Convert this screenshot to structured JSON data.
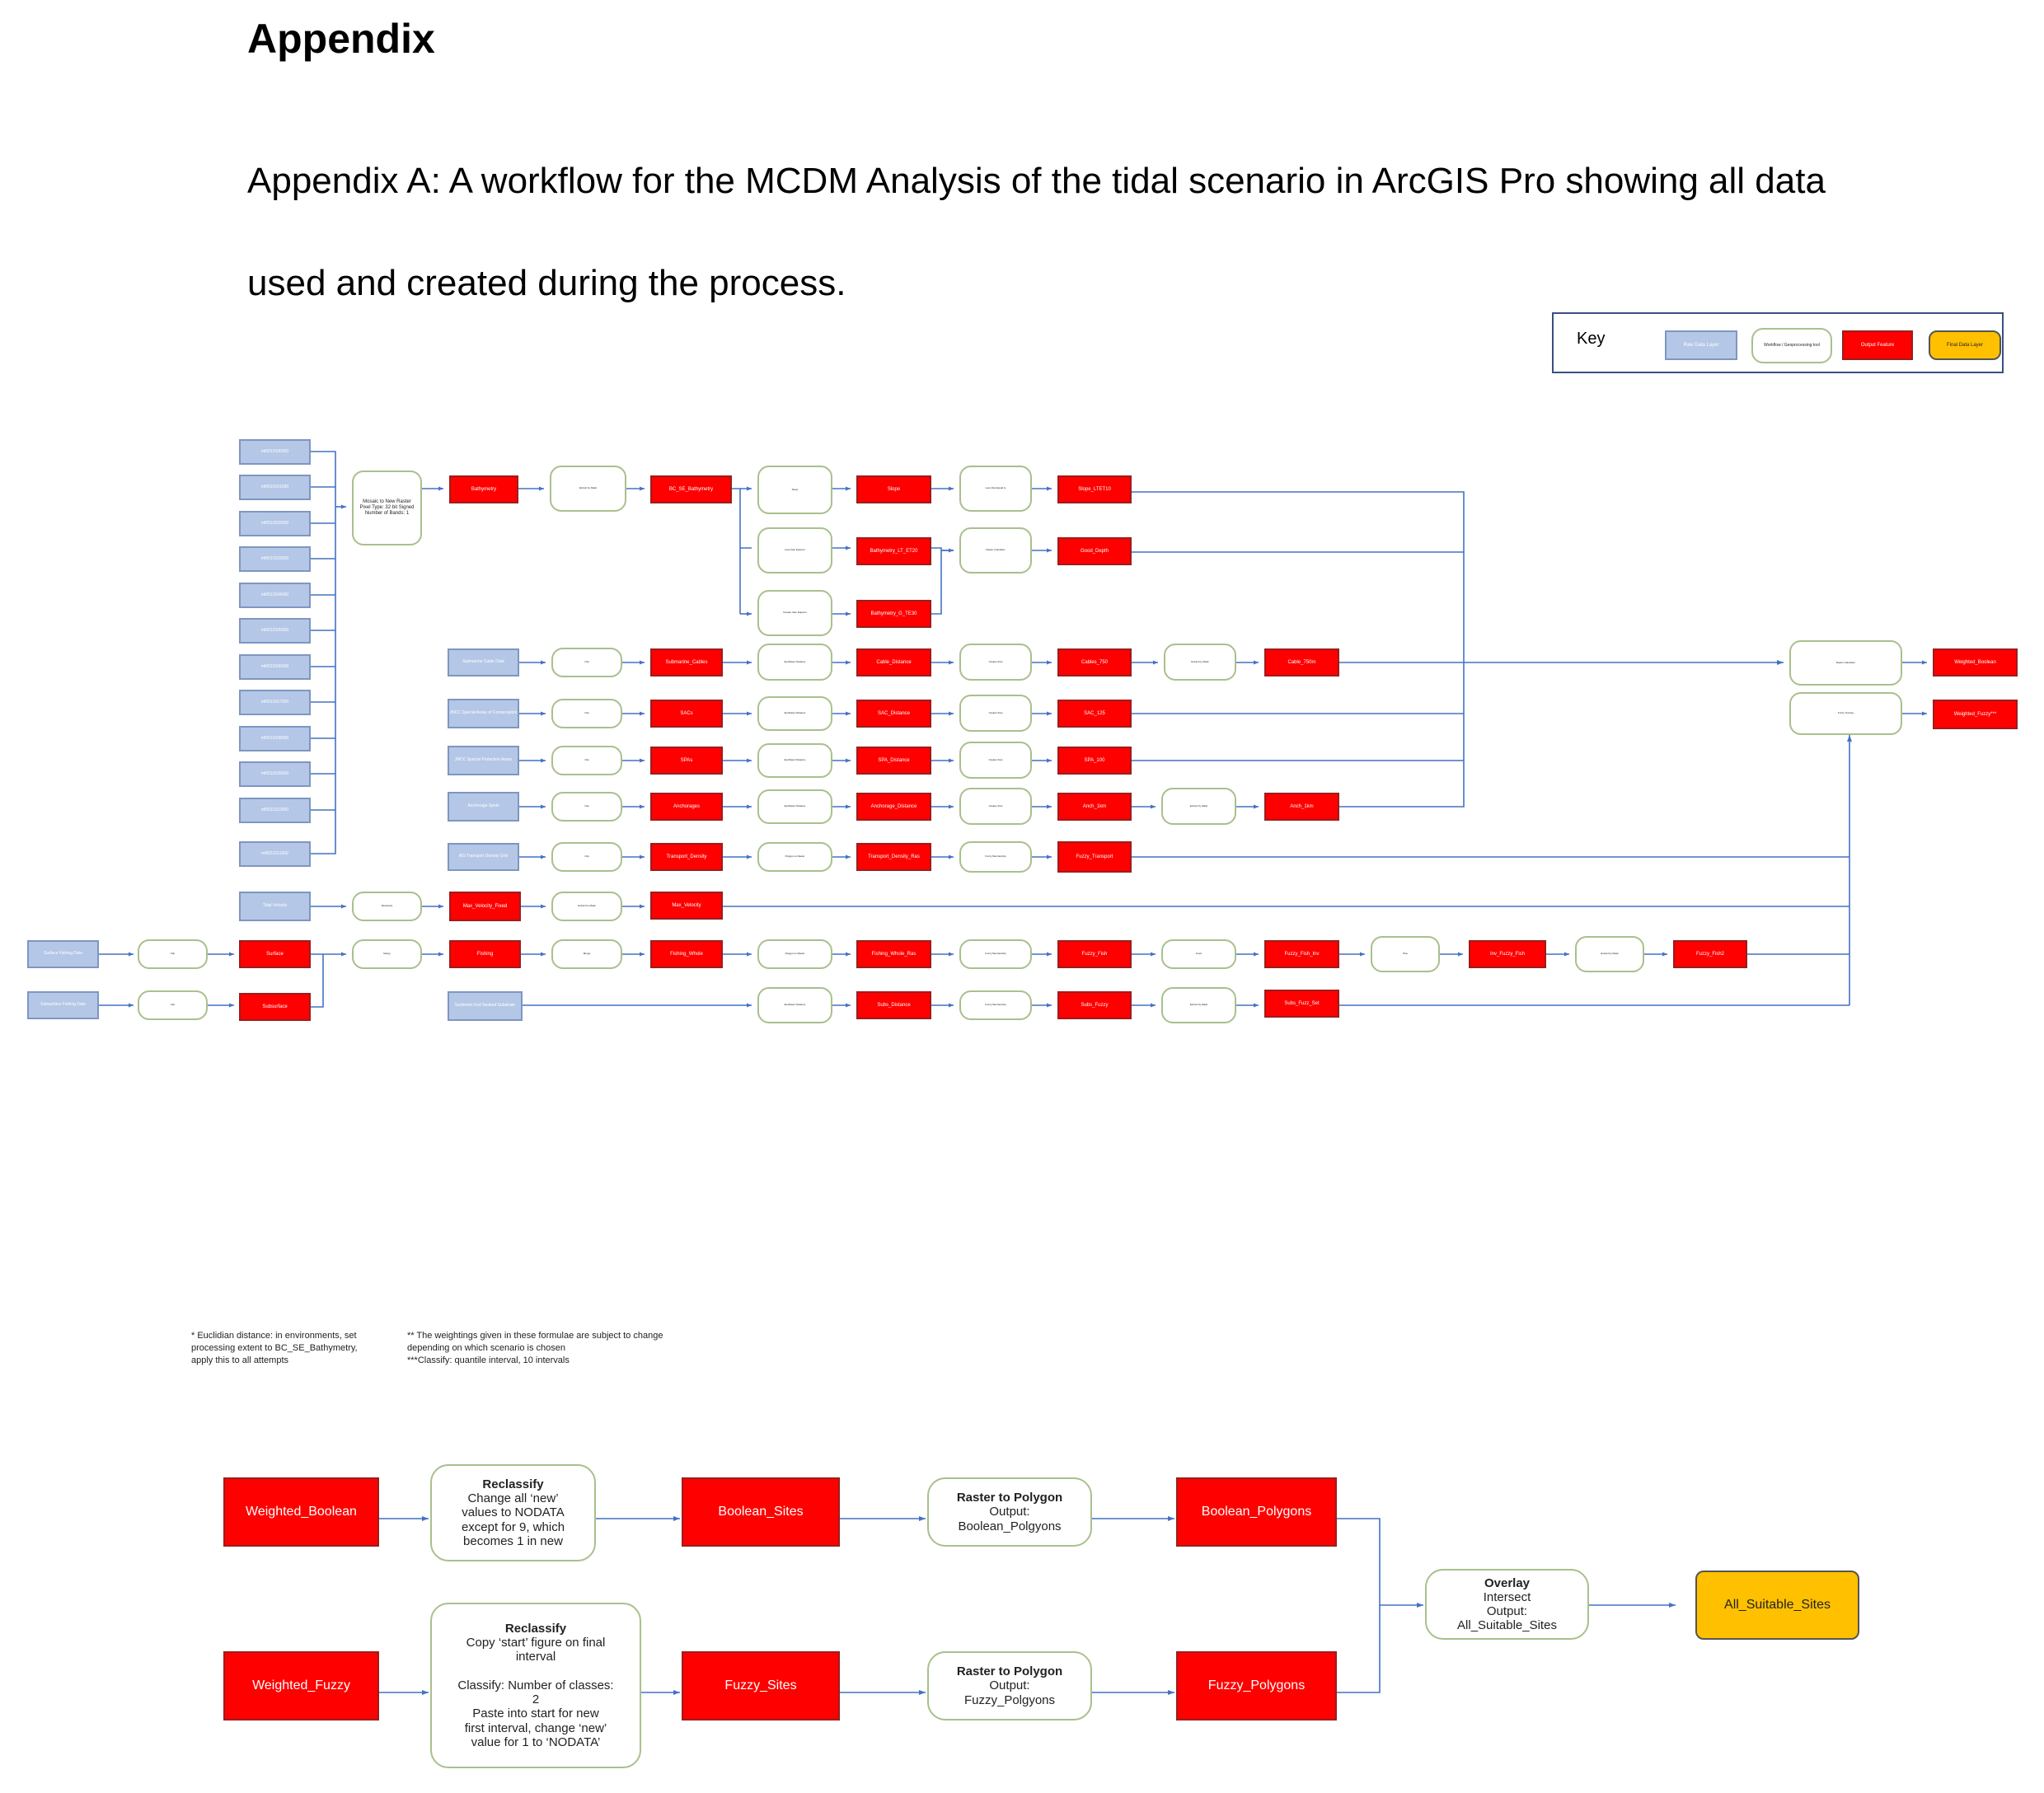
{
  "document": {
    "heading": "Appendix",
    "subheading": "Appendix A: A workflow for the MCDM Analysis of the tidal scenario in ArcGIS Pro showing all data used and created during the process."
  },
  "key": {
    "label": "Key",
    "items": [
      "Raw Data Layer",
      "Workflow / Geoprocessing tool",
      "Output Feature",
      "Final Data Layer"
    ]
  },
  "colors": {
    "raw": "#b4c7e7",
    "process_border": "#a9c08c",
    "output": "#ff0000",
    "final": "#ffc000",
    "connector": "#4472c4"
  },
  "workflow": {
    "raw_tiles": [
      "mf0010100000",
      "mf0010101000",
      "mf0010102000",
      "mf0010103000",
      "mf0010104000",
      "mf0010105000",
      "mf0010106000",
      "mf0010107000",
      "mf0010108000",
      "mf0010109000",
      "mf0010110000",
      "mf0010111000"
    ],
    "mosaic": "Mosaic to New Raster\nPixel Type: 32 bit Signed\nNumber of Bands: 1",
    "bathymetry": "Bathymetry",
    "extract_bathy": "Extract by Mask",
    "bc_bathy": "BC_SE_Bathymetry",
    "slope_tool": "Slope",
    "slope": "Slope",
    "reclass_slope": "Less than Equal to",
    "slope_out": "Slope_LTET10",
    "less_than_1": "Less than Equal to",
    "bathy_lt": "Bathymetry_LT_ET20",
    "greater_than": "Greater than Equal to",
    "bathy_gt": "Bathymetry_G_TE30",
    "raster_calc_depth": "Raster Calculator",
    "good_depth": "Good_Depth",
    "subsea_cable": "Submarine Cable Data",
    "clip_cable": "Clip",
    "cables_out": "Submarine_Cables",
    "eucl_cable": "Euclidean Distance",
    "cable_dist": "Cable_Distance",
    "greater_cable": "Greater than",
    "cables_750": "Cables_750",
    "extract_cable": "Extract by Mask",
    "cable_750m": "Cable_750m",
    "sac_raw": "JNCC Special Areas of Conservation",
    "clip_sac": "Clip",
    "sacs": "SACs",
    "eucl_sac": "Euclidean Distance",
    "sac_dist": "SAC_Distance",
    "greater_sac": "Greater than",
    "sac_125": "SAC_125",
    "spa_raw": "JNCC Special Protection Areas",
    "clip_spa": "Clip",
    "spas": "SPAs",
    "eucl_spa": "Euclidean Distance",
    "spa_dist": "SPA_Distance",
    "greater_spa": "Greater than",
    "spa_100": "SPA_100",
    "anch_raw": "Anchorage Spots",
    "clip_anch": "Clip",
    "anchorages": "Anchorages",
    "eucl_anch": "Euclidean Distance",
    "anch_dist": "Anchorage_Distance",
    "greater_anch": "Greater than",
    "anch_1km": "Anch_1km",
    "extract_anch": "Extract by Mask",
    "anch_1km_b": "Anch_1km",
    "ais_raw": "AIS Transport Density Grid",
    "clip_ais": "Clip",
    "transport": "Transport_Density",
    "poly_ais": "Polygon to Raster",
    "transport_ras": "Transport_Density_Ras",
    "fuzzy_member_ais": "Fuzzy Membership",
    "fuzzy_transport": "Fuzzy_Transport",
    "tidal_raw": "Tidal Velocity",
    "resample": "Resample",
    "max_vel_fixed": "Max_Velocity_Fixed",
    "extract_vel": "Extract by Mask",
    "max_velocity": "Max_Velocity",
    "surface_raw": "Surface Fishing Data",
    "clip_surf": "Clip",
    "surface": "Surface",
    "subsurf_raw": "Subsurface Fishing Data",
    "clip_subsurf": "Clip",
    "subsurface": "Subsurface",
    "merge1": "Merge",
    "fishing": "Fishing",
    "merge2": "Merge",
    "fishing_whole": "Fishing_Whole",
    "poly_fish": "Polygon to Raster",
    "fishing_whole_ras": "Fishing_Whole_Ras",
    "fuzzy_member_fish": "Fuzzy Membership",
    "fuzzy_fish": "Fuzzy_Fish",
    "invert_fish": "Invert",
    "fuzzy_fish_inv": "Fuzzy_Fish_Inv",
    "plus_fish": "Plus",
    "inv_fuzzy_fish": "Inv_Fuzzy_Fish",
    "extract_fish": "Extract by Mask",
    "fuzzy_fish2": "Fuzzy_Fish2",
    "sediment_raw": "Sediment Grid Seabed Substrate",
    "eucl_sed": "Euclidean Distance",
    "subs_dist": "Subs_Distance",
    "fuzzy_member_sed": "Fuzzy Membership",
    "subs_fuzzy": "Subs_Fuzzy",
    "extract_sed": "Extract by Mask",
    "subs_fuzz_set": "Subs_Fuzz_Set",
    "rc_boolean": "Raster Calculator",
    "weighted_boolean_small": "Weighted_Boolean",
    "fuzzy_overlay": "Fuzzy Overlay",
    "weighted_fuzzy_small": "Weighted_Fuzzy***"
  },
  "notes": {
    "note1": "* Euclidian distance: in environments, set\nprocessing extent to BC_SE_Bathymetry,\napply this to all attempts",
    "note2": "** The weightings given in these formulae are subject to change\ndepending on which scenario is chosen\n***Classify: quantile interval, 10 intervals"
  },
  "final_flow": {
    "weighted_boolean": "Weighted_Boolean",
    "reclassify1_title": "Reclassify",
    "reclassify1_text": "Change all ‘new’\nvalues to NODATA\nexcept for 9, which\nbecomes 1 in new",
    "boolean_sites": "Boolean_Sites",
    "rtp1_title": "Raster to Polygon",
    "rtp1_text": "Output:\nBoolean_Polgyons",
    "boolean_polygons": "Boolean_Polygons",
    "weighted_fuzzy": "Weighted_Fuzzy",
    "reclassify2_title": "Reclassify",
    "reclassify2_text": "Copy ‘start’ figure on final\ninterval\n\nClassify: Number of classes:\n2\nPaste into start for new\nfirst interval, change ‘new’\nvalue for 1 to ‘NODATA’",
    "fuzzy_sites": "Fuzzy_Sites",
    "rtp2_title": "Raster to Polygon",
    "rtp2_text": "Output:\nFuzzy_Polgyons",
    "fuzzy_polygons": "Fuzzy_Polygons",
    "overlay_title": "Overlay",
    "overlay_text": "Intersect\nOutput:\nAll_Suitable_Sites",
    "all_suitable_sites": "All_Suitable_Sites"
  }
}
